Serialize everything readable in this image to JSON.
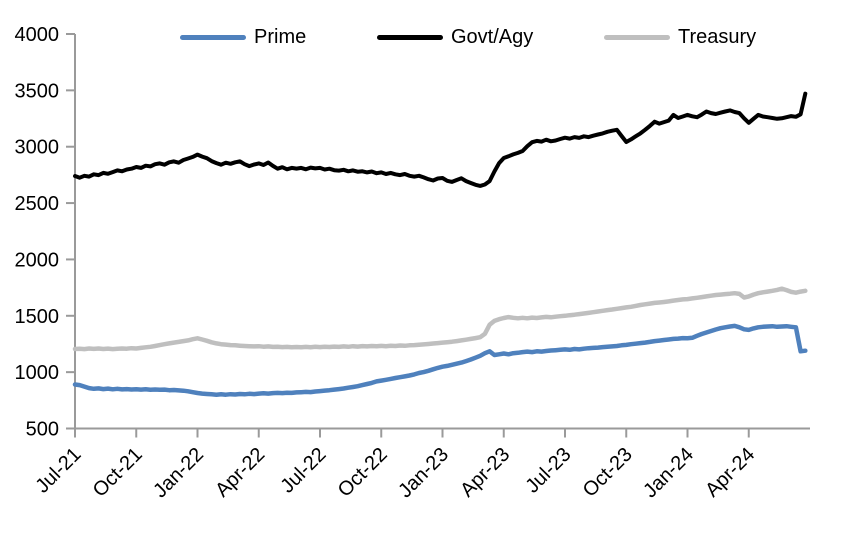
{
  "legend": [
    {
      "label": "Prime",
      "color": "#4f81bd"
    },
    {
      "label": "Govt/Agy",
      "color": "#000000"
    },
    {
      "label": "Treasury",
      "color": "#bfbfbf"
    }
  ],
  "chart_data": {
    "type": "line",
    "title": "",
    "xlabel": "",
    "ylabel": "",
    "grid": false,
    "legend_position": "top",
    "axis_color": "#9a9a9a",
    "label_color": "#000000",
    "ylim": [
      500,
      4000
    ],
    "y_ticks": [
      500,
      1000,
      1500,
      2000,
      2500,
      3000,
      3500,
      4000
    ],
    "x_tick_labels": [
      "Jul-21",
      "Oct-21",
      "Jan-22",
      "Apr-22",
      "Jul-22",
      "Oct-22",
      "Jan-23",
      "Apr-23",
      "Jul-23",
      "Oct-23",
      "Jan-24",
      "Apr-24"
    ],
    "x_frequency": "weekly",
    "x_range_months": 36,
    "weeks_per_month": 4.333,
    "series": [
      {
        "name": "Prime",
        "color": "#4f81bd",
        "stroke_width": 4.5,
        "values": [
          890,
          885,
          872,
          858,
          852,
          856,
          850,
          854,
          848,
          852,
          847,
          850,
          846,
          848,
          845,
          848,
          844,
          846,
          843,
          845,
          840,
          842,
          838,
          835,
          830,
          822,
          815,
          810,
          806,
          803,
          800,
          803,
          800,
          804,
          802,
          806,
          803,
          808,
          805,
          810,
          812,
          810,
          814,
          816,
          814,
          818,
          816,
          820,
          822,
          825,
          823,
          828,
          832,
          836,
          840,
          845,
          850,
          855,
          862,
          868,
          875,
          885,
          895,
          905,
          918,
          925,
          932,
          940,
          948,
          955,
          962,
          970,
          980,
          992,
          1000,
          1012,
          1025,
          1038,
          1048,
          1055,
          1065,
          1075,
          1085,
          1098,
          1112,
          1128,
          1145,
          1168,
          1185,
          1152,
          1158,
          1165,
          1158,
          1168,
          1172,
          1178,
          1182,
          1178,
          1185,
          1182,
          1188,
          1192,
          1195,
          1198,
          1202,
          1198,
          1205,
          1202,
          1208,
          1212,
          1215,
          1218,
          1222,
          1225,
          1228,
          1232,
          1238,
          1242,
          1248,
          1252,
          1258,
          1262,
          1268,
          1275,
          1280,
          1285,
          1290,
          1295,
          1298,
          1302,
          1300,
          1305,
          1322,
          1338,
          1352,
          1365,
          1378,
          1390,
          1398,
          1405,
          1410,
          1398,
          1380,
          1375,
          1388,
          1398,
          1402,
          1405,
          1408,
          1402,
          1405,
          1408,
          1402,
          1398,
          1185,
          1190
        ]
      },
      {
        "name": "Govt/Agy",
        "color": "#000000",
        "stroke_width": 4,
        "values": [
          2740,
          2725,
          2742,
          2735,
          2755,
          2748,
          2768,
          2760,
          2775,
          2790,
          2782,
          2798,
          2805,
          2820,
          2812,
          2832,
          2825,
          2845,
          2852,
          2840,
          2862,
          2870,
          2858,
          2882,
          2895,
          2910,
          2930,
          2912,
          2898,
          2872,
          2855,
          2840,
          2858,
          2848,
          2862,
          2870,
          2845,
          2828,
          2842,
          2852,
          2838,
          2860,
          2830,
          2805,
          2818,
          2800,
          2812,
          2806,
          2812,
          2800,
          2815,
          2808,
          2812,
          2798,
          2805,
          2792,
          2788,
          2795,
          2782,
          2790,
          2778,
          2782,
          2772,
          2780,
          2765,
          2772,
          2758,
          2768,
          2755,
          2748,
          2758,
          2742,
          2735,
          2742,
          2728,
          2712,
          2700,
          2718,
          2722,
          2698,
          2688,
          2705,
          2720,
          2695,
          2678,
          2662,
          2652,
          2665,
          2695,
          2780,
          2855,
          2900,
          2915,
          2932,
          2945,
          2962,
          3005,
          3040,
          3052,
          3045,
          3062,
          3048,
          3055,
          3068,
          3080,
          3072,
          3085,
          3078,
          3092,
          3085,
          3098,
          3108,
          3118,
          3132,
          3142,
          3150,
          3095,
          3042,
          3065,
          3092,
          3118,
          3150,
          3185,
          3222,
          3205,
          3218,
          3232,
          3282,
          3255,
          3268,
          3282,
          3270,
          3262,
          3285,
          3312,
          3298,
          3290,
          3302,
          3312,
          3322,
          3308,
          3298,
          3252,
          3212,
          3248,
          3282,
          3268,
          3262,
          3255,
          3248,
          3252,
          3262,
          3272,
          3265,
          3288,
          3470
        ]
      },
      {
        "name": "Treasury",
        "color": "#bfbfbf",
        "stroke_width": 4.5,
        "values": [
          1205,
          1208,
          1204,
          1210,
          1206,
          1210,
          1205,
          1209,
          1204,
          1207,
          1210,
          1208,
          1212,
          1210,
          1215,
          1220,
          1225,
          1232,
          1240,
          1248,
          1255,
          1262,
          1268,
          1275,
          1282,
          1292,
          1300,
          1290,
          1278,
          1265,
          1255,
          1248,
          1244,
          1240,
          1238,
          1235,
          1232,
          1230,
          1228,
          1230,
          1226,
          1228,
          1224,
          1226,
          1222,
          1224,
          1220,
          1223,
          1220,
          1224,
          1221,
          1225,
          1222,
          1226,
          1223,
          1227,
          1224,
          1228,
          1225,
          1230,
          1227,
          1231,
          1228,
          1232,
          1230,
          1233,
          1230,
          1234,
          1232,
          1236,
          1234,
          1238,
          1240,
          1243,
          1246,
          1250,
          1254,
          1258,
          1262,
          1266,
          1270,
          1275,
          1282,
          1288,
          1295,
          1302,
          1310,
          1340,
          1420,
          1455,
          1470,
          1480,
          1488,
          1482,
          1478,
          1482,
          1478,
          1484,
          1480,
          1486,
          1490,
          1487,
          1492,
          1496,
          1500,
          1505,
          1510,
          1515,
          1520,
          1526,
          1532,
          1538,
          1544,
          1550,
          1556,
          1562,
          1568,
          1574,
          1580,
          1588,
          1596,
          1602,
          1608,
          1614,
          1618,
          1622,
          1628,
          1635,
          1640,
          1645,
          1648,
          1654,
          1660,
          1666,
          1672,
          1678,
          1684,
          1688,
          1692,
          1696,
          1700,
          1694,
          1662,
          1672,
          1688,
          1700,
          1708,
          1715,
          1722,
          1730,
          1740,
          1728,
          1712,
          1705,
          1715,
          1722
        ]
      }
    ]
  }
}
